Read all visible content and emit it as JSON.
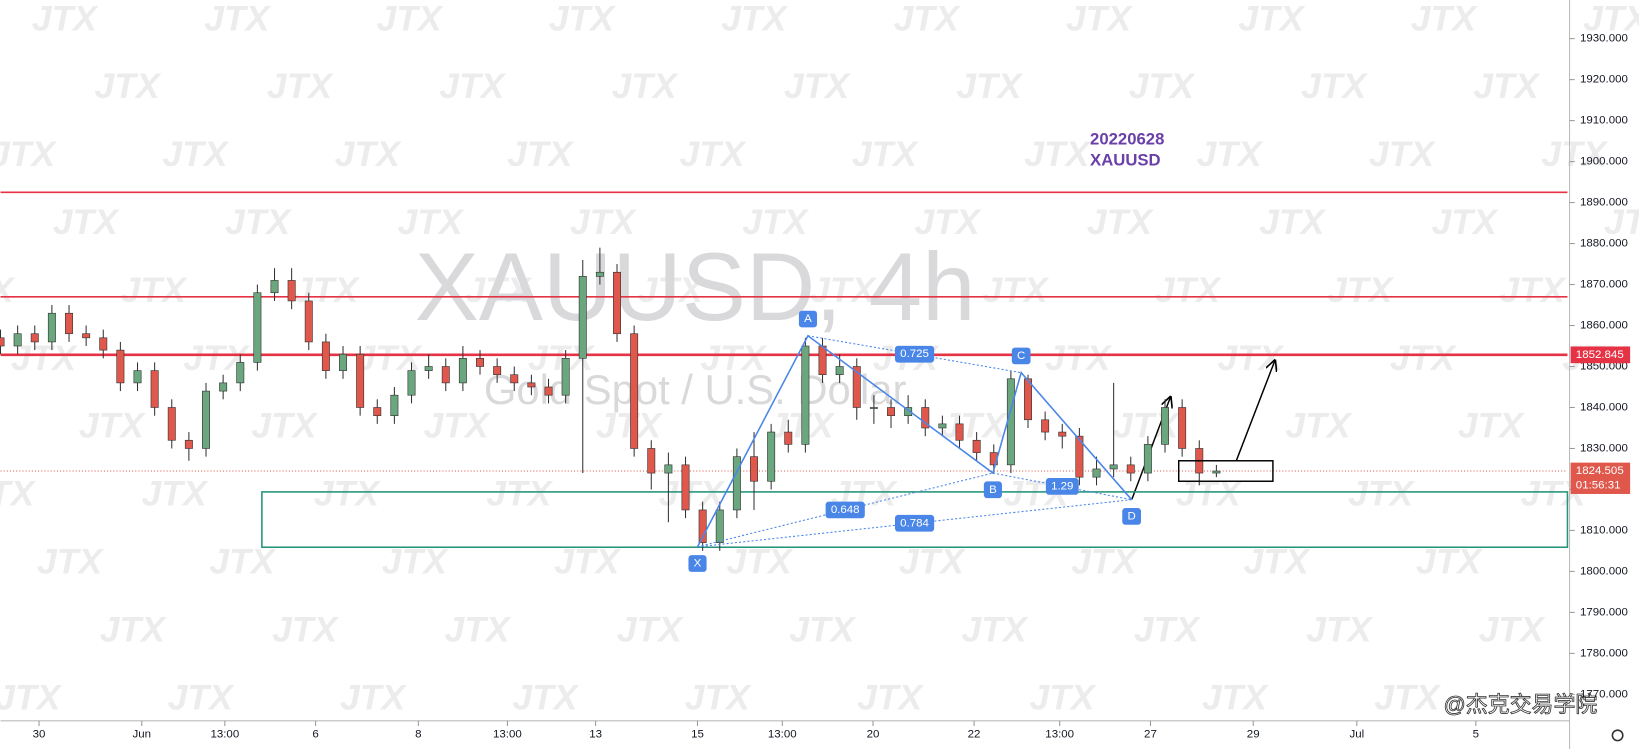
{
  "chart_data": {
    "type": "candlestick",
    "symbol_title": "XAUUSD, 4h",
    "symbol_subtitle": "Gold Spot / U.S. Dollar",
    "note": [
      "20220628",
      "XAUUSD"
    ],
    "watermark": "JTX",
    "footer": "@杰克交易学院",
    "up_color": "#6aa77f",
    "down_color": "#e0584c",
    "wick_color": "#333333",
    "x": [
      0,
      2,
      4,
      6,
      8,
      10,
      12,
      14,
      16,
      18,
      20,
      22,
      24,
      26,
      28,
      30,
      32,
      34,
      36,
      38,
      40,
      42,
      44,
      46,
      48,
      50,
      52,
      54,
      56,
      58,
      60,
      62,
      64,
      66,
      68,
      70,
      72,
      74,
      76,
      78,
      80,
      82,
      84,
      86,
      88,
      90,
      92,
      94,
      96,
      98,
      100,
      102,
      104,
      106,
      108,
      110,
      112,
      114,
      116,
      118,
      120,
      122,
      124,
      126,
      128,
      130,
      132,
      134,
      136,
      138,
      140,
      142
    ],
    "open": [
      1857,
      1855,
      1858,
      1856,
      1863,
      1858,
      1857,
      1854,
      1846,
      1849,
      1840,
      1832,
      1830,
      1844,
      1846,
      1851,
      1868,
      1871,
      1866,
      1856,
      1849,
      1853,
      1840,
      1838,
      1843,
      1849,
      1850,
      1846,
      1852,
      1850,
      1848,
      1846,
      1845,
      1843,
      1852,
      1872,
      1873,
      1858,
      1830,
      1824,
      1826,
      1815,
      1807,
      1815,
      1828,
      1822,
      1834,
      1831,
      1855,
      1848,
      1850,
      1840,
      1840,
      1838,
      1840,
      1835,
      1836,
      1832,
      1829,
      1826,
      1847,
      1837,
      1834,
      1833,
      1823,
      1825,
      1826,
      1824,
      1831,
      1840,
      1830,
      1824
    ],
    "high": [
      1859,
      1860,
      1860,
      1865,
      1865,
      1860,
      1859,
      1856,
      1851,
      1851,
      1842,
      1834,
      1846,
      1848,
      1853,
      1870,
      1874,
      1874,
      1868,
      1858,
      1855,
      1855,
      1842,
      1845,
      1851,
      1853,
      1852,
      1855,
      1854,
      1852,
      1850,
      1848,
      1847,
      1854,
      1876,
      1879,
      1875,
      1860,
      1832,
      1829,
      1828,
      1817,
      1817,
      1830,
      1834,
      1836,
      1837,
      1857,
      1857,
      1853,
      1852,
      1843,
      1842,
      1843,
      1842,
      1838,
      1838,
      1834,
      1831,
      1849,
      1848,
      1839,
      1836,
      1835,
      1828,
      1846,
      1828,
      1833,
      1842,
      1842,
      1832,
      1826
    ],
    "low": [
      1853,
      1853,
      1854,
      1854,
      1856,
      1855,
      1852,
      1844,
      1844,
      1838,
      1830,
      1827,
      1828,
      1842,
      1844,
      1849,
      1866,
      1864,
      1854,
      1847,
      1847,
      1838,
      1836,
      1836,
      1841,
      1847,
      1844,
      1844,
      1848,
      1846,
      1844,
      1843,
      1841,
      1841,
      1824,
      1870,
      1856,
      1828,
      1820,
      1812,
      1813,
      1805,
      1805,
      1813,
      1815,
      1820,
      1829,
      1829,
      1846,
      1846,
      1837,
      1836,
      1835,
      1836,
      1833,
      1833,
      1830,
      1827,
      1824,
      1824,
      1835,
      1832,
      1830,
      1821,
      1821,
      1823,
      1822,
      1822,
      1829,
      1828,
      1821,
      1823
    ],
    "close": [
      1855,
      1858,
      1856,
      1863,
      1858,
      1857,
      1854,
      1846,
      1849,
      1840,
      1832,
      1830,
      1844,
      1846,
      1851,
      1868,
      1871,
      1866,
      1856,
      1849,
      1853,
      1840,
      1838,
      1843,
      1849,
      1850,
      1846,
      1852,
      1850,
      1848,
      1846,
      1845,
      1843,
      1852,
      1872,
      1873,
      1858,
      1830,
      1824,
      1826,
      1815,
      1807,
      1815,
      1828,
      1822,
      1834,
      1831,
      1855,
      1848,
      1850,
      1840,
      1840,
      1838,
      1840,
      1835,
      1836,
      1832,
      1829,
      1826,
      1847,
      1837,
      1834,
      1833,
      1823,
      1825,
      1826,
      1824,
      1831,
      1840,
      1830,
      1824,
      1824.5
    ],
    "xlim": [
      0,
      183
    ],
    "ylim": [
      1763.55,
      1939.43
    ],
    "xticks": [
      {
        "value": 4.5,
        "label": "30"
      },
      {
        "value": 16.5,
        "label": "Jun"
      },
      {
        "value": 26.2,
        "label": "13:00"
      },
      {
        "value": 36.8,
        "label": "6"
      },
      {
        "value": 48.8,
        "label": "8"
      },
      {
        "value": 59.2,
        "label": "13:00"
      },
      {
        "value": 69.5,
        "label": "13"
      },
      {
        "value": 81.4,
        "label": "15"
      },
      {
        "value": 91.3,
        "label": "13:00"
      },
      {
        "value": 101.9,
        "label": "20"
      },
      {
        "value": 113.7,
        "label": "22"
      },
      {
        "value": 123.7,
        "label": "13:00"
      },
      {
        "value": 134.3,
        "label": "27"
      },
      {
        "value": 146.3,
        "label": "29"
      },
      {
        "value": 158.4,
        "label": "Jul"
      },
      {
        "value": 172.3,
        "label": "5"
      }
    ],
    "yticks": [
      {
        "value": 1770,
        "label": "1770.000"
      },
      {
        "value": 1780,
        "label": "1780.000"
      },
      {
        "value": 1790,
        "label": "1790.000"
      },
      {
        "value": 1800,
        "label": "1800.000"
      },
      {
        "value": 1810,
        "label": "1810.000"
      },
      {
        "value": 1820,
        "label": "1820.000"
      },
      {
        "value": 1830,
        "label": "1830.000"
      },
      {
        "value": 1840,
        "label": "1840.000"
      },
      {
        "value": 1850,
        "label": "1850.000"
      },
      {
        "value": 1860,
        "label": "1860.000"
      },
      {
        "value": 1870,
        "label": "1870.000"
      },
      {
        "value": 1880,
        "label": "1880.000"
      },
      {
        "value": 1890,
        "label": "1890.000"
      },
      {
        "value": 1900,
        "label": "1900.000"
      },
      {
        "value": 1910,
        "label": "1910.000"
      },
      {
        "value": 1920,
        "label": "1920.000"
      },
      {
        "value": 1930,
        "label": "1930.000"
      }
    ],
    "levels": [
      1892.5,
      1867,
      1852.845
    ],
    "level_color": "#e53345",
    "marked_level": 1852.845,
    "current_price": 1824.505,
    "countdown": "01:56:31",
    "zone": [
      1805.9,
      1819.4
    ],
    "zone_color": "#26947a",
    "box": {
      "x": [
        137.6,
        148.6
      ],
      "price": [
        1822,
        1827
      ]
    },
    "pattern": {
      "color": "#4a86e8",
      "points": [
        {
          "label": "X",
          "x": 81.4,
          "price": 1806
        },
        {
          "label": "A",
          "x": 94.3,
          "price": 1857.5
        },
        {
          "label": "B",
          "x": 115.9,
          "price": 1824
        },
        {
          "label": "C",
          "x": 119.2,
          "price": 1848.5
        },
        {
          "label": "D",
          "x": 132.1,
          "price": 1817.5
        }
      ],
      "ratios": [
        "0.725",
        "0.648",
        "0.784",
        "1.29"
      ]
    }
  }
}
